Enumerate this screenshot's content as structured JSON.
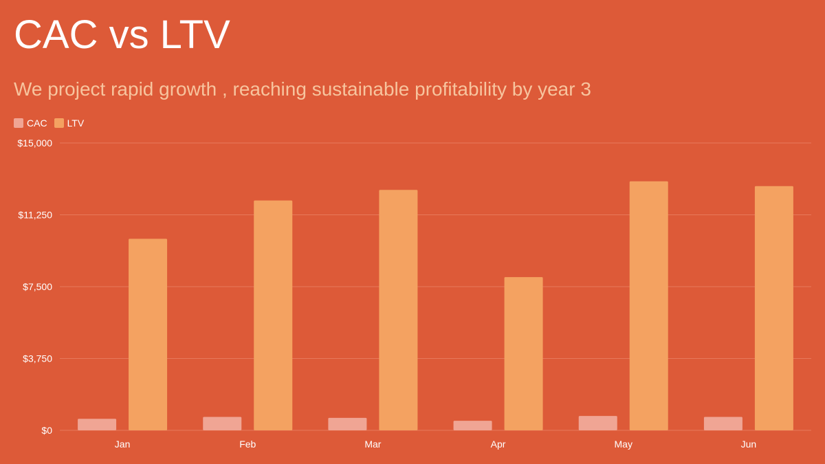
{
  "chart_data": {
    "type": "bar",
    "title": "CAC vs LTV",
    "subtitle": "We project rapid growth , reaching sustainable profitability by year 3",
    "categories": [
      "Jan",
      "Feb",
      "Mar",
      "Apr",
      "May",
      "Jun"
    ],
    "series": [
      {
        "name": "CAC",
        "color": "#F0A594",
        "values": [
          600,
          700,
          650,
          500,
          750,
          700
        ]
      },
      {
        "name": "LTV",
        "color": "#F4A261",
        "values": [
          10000,
          12000,
          12550,
          8000,
          13000,
          12750
        ]
      }
    ],
    "y_ticks": [
      0,
      3750,
      7500,
      11250,
      15000
    ],
    "y_tick_labels": [
      "$0",
      "$3,750",
      "$7,500",
      "$11,250",
      "$15,000"
    ],
    "ylim": [
      0,
      15000
    ],
    "xlabel": "",
    "ylabel": "",
    "legend_position": "top-left",
    "grid": true
  },
  "colors": {
    "background": "#DD5A38",
    "gridline": "#E8795B",
    "title": "#FFFFFF",
    "subtitle": "#F7C49E"
  }
}
